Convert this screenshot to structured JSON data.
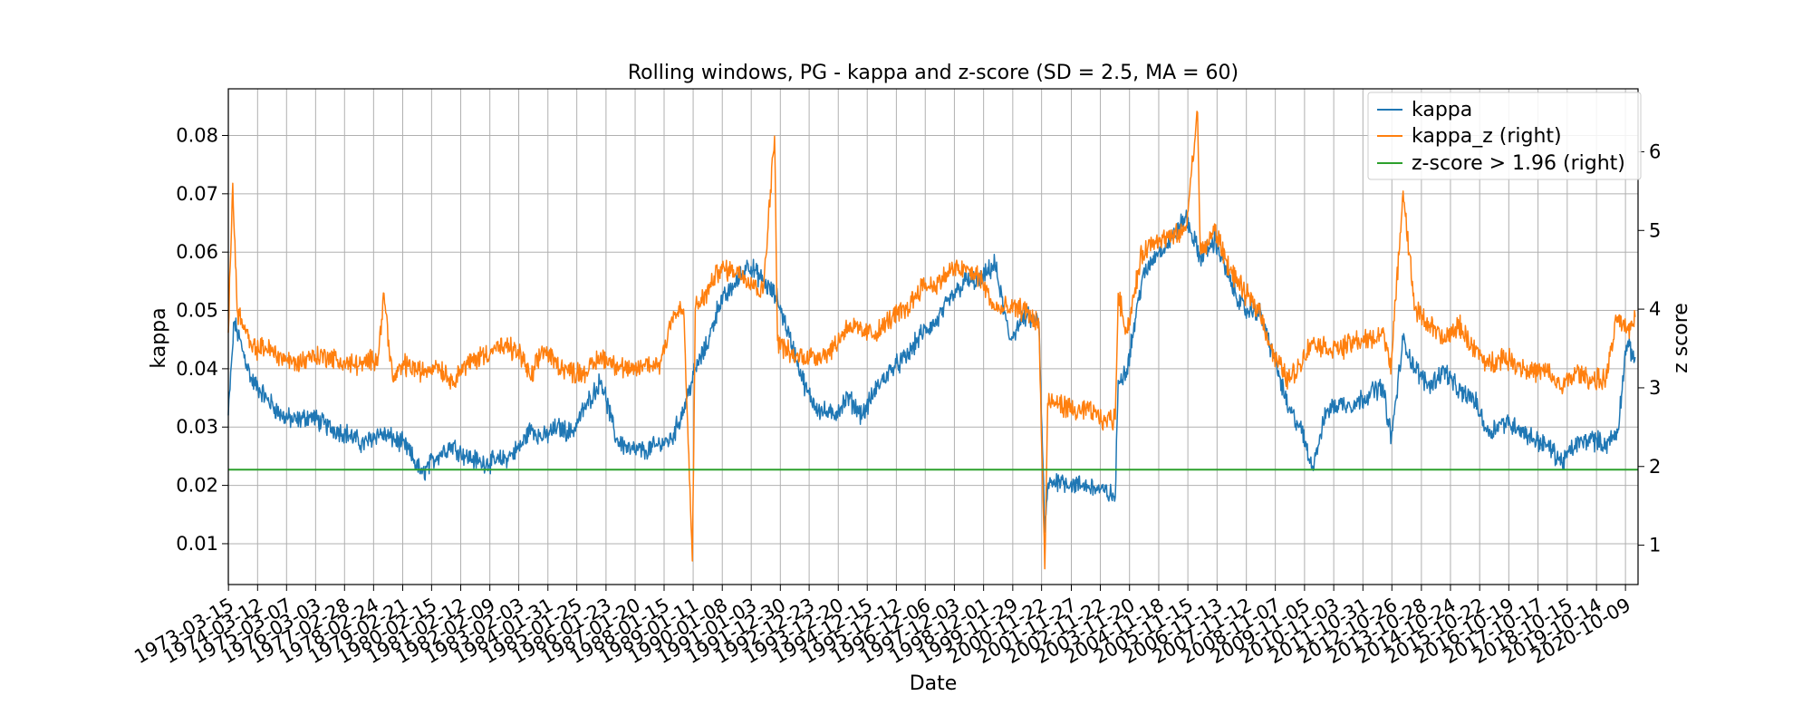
{
  "chart_data": {
    "type": "line",
    "title": "Rolling windows, PG - kappa and z-score (SD = 2.5, MA = 60)",
    "xlabel": "Date",
    "ylabel_left": "kappa",
    "ylabel_right": "z score",
    "ylim_left": [
      0.003,
      0.088
    ],
    "ylim_right": [
      0.5,
      6.8
    ],
    "yticks_left": [
      "0.01",
      "0.02",
      "0.03",
      "0.04",
      "0.05",
      "0.06",
      "0.07",
      "0.08"
    ],
    "yticks_right": [
      "1",
      "2",
      "3",
      "4",
      "5",
      "6"
    ],
    "xlim": [
      1973.2,
      2021.2
    ],
    "grid": true,
    "legend_position": "top-right",
    "x_tick_labels": [
      "1973-03-15",
      "1974-03-12",
      "1975-03-07",
      "1976-03-03",
      "1977-02-28",
      "1978-02-24",
      "1979-02-21",
      "1980-02-15",
      "1981-02-12",
      "1982-02-09",
      "1983-02-03",
      "1984-01-31",
      "1985-01-25",
      "1986-01-23",
      "1987-01-20",
      "1988-01-15",
      "1989-01-11",
      "1990-01-08",
      "1991-01-03",
      "1991-12-30",
      "1992-12-23",
      "1993-12-20",
      "1994-12-15",
      "1995-12-12",
      "1996-12-06",
      "1997-12-03",
      "1998-12-01",
      "1999-11-29",
      "2000-11-22",
      "2001-11-27",
      "2002-11-22",
      "2003-11-20",
      "2004-11-18",
      "2005-11-15",
      "2006-11-13",
      "2007-11-12",
      "2008-11-07",
      "2009-11-05",
      "2010-11-03",
      "2011-10-31",
      "2012-10-26",
      "2013-10-28",
      "2014-10-24",
      "2015-10-22",
      "2016-10-19",
      "2017-10-17",
      "2018-10-15",
      "2019-10-14",
      "2020-10-09"
    ],
    "colors": {
      "kappa": "#1f77b4",
      "kappa_z": "#ff7f0e",
      "threshold": "#2ca02c"
    },
    "series": [
      {
        "name": "kappa",
        "axis": "left",
        "x": [
          1973.2,
          1973.4,
          1973.7,
          1974.0,
          1974.5,
          1975.0,
          1975.5,
          1976.0,
          1976.6,
          1977.2,
          1977.8,
          1978.3,
          1978.8,
          1979.2,
          1979.8,
          1980.3,
          1980.8,
          1981.3,
          1981.8,
          1982.3,
          1982.8,
          1983.2,
          1983.5,
          1983.9,
          1984.4,
          1984.9,
          1985.4,
          1985.9,
          1986.4,
          1986.9,
          1987.4,
          1987.9,
          1988.3,
          1988.7,
          1989.1,
          1989.5,
          1989.9,
          1990.4,
          1990.9,
          1991.4,
          1991.9,
          1992.4,
          1992.9,
          1993.3,
          1993.8,
          1994.3,
          1994.8,
          1995.3,
          1995.8,
          1996.3,
          1996.8,
          1997.3,
          1997.8,
          1998.3,
          1998.8,
          1999.3,
          1999.8,
          2000.3,
          2000.8,
          2001.0,
          2001.1,
          2001.5,
          2002.0,
          2002.5,
          2003.0,
          2003.4,
          2003.5,
          2003.8,
          2004.3,
          2004.8,
          2005.3,
          2005.8,
          2006.3,
          2006.8,
          2007.3,
          2007.8,
          2008.3,
          2008.8,
          2009.3,
          2009.7,
          2010.1,
          2010.6,
          2011.1,
          2011.6,
          2012.1,
          2012.5,
          2012.8,
          2013.2,
          2013.6,
          2014.1,
          2014.6,
          2015.1,
          2015.6,
          2016.1,
          2016.6,
          2017.1,
          2017.6,
          2018.1,
          2018.6,
          2019.1,
          2019.6,
          2020.1,
          2020.5,
          2020.8,
          2021.1
        ],
        "y": [
          0.032,
          0.048,
          0.043,
          0.038,
          0.035,
          0.032,
          0.031,
          0.032,
          0.03,
          0.029,
          0.027,
          0.029,
          0.028,
          0.027,
          0.022,
          0.025,
          0.027,
          0.025,
          0.024,
          0.024,
          0.025,
          0.027,
          0.03,
          0.028,
          0.03,
          0.029,
          0.034,
          0.038,
          0.028,
          0.026,
          0.026,
          0.027,
          0.028,
          0.033,
          0.04,
          0.044,
          0.051,
          0.054,
          0.058,
          0.055,
          0.052,
          0.044,
          0.036,
          0.033,
          0.032,
          0.035,
          0.032,
          0.037,
          0.04,
          0.042,
          0.046,
          0.048,
          0.052,
          0.055,
          0.055,
          0.058,
          0.045,
          0.049,
          0.048,
          0.012,
          0.02,
          0.021,
          0.02,
          0.02,
          0.019,
          0.018,
          0.038,
          0.04,
          0.055,
          0.06,
          0.062,
          0.066,
          0.059,
          0.062,
          0.055,
          0.05,
          0.05,
          0.042,
          0.033,
          0.03,
          0.023,
          0.033,
          0.034,
          0.034,
          0.036,
          0.037,
          0.028,
          0.045,
          0.04,
          0.037,
          0.04,
          0.036,
          0.035,
          0.029,
          0.031,
          0.03,
          0.028,
          0.027,
          0.024,
          0.027,
          0.028,
          0.027,
          0.029,
          0.044,
          0.042
        ]
      },
      {
        "name": "kappa_z (right)",
        "axis": "right",
        "x": [
          1973.2,
          1973.35,
          1973.5,
          1973.7,
          1974.0,
          1974.5,
          1975.0,
          1975.5,
          1976.0,
          1976.6,
          1977.2,
          1977.8,
          1978.3,
          1978.5,
          1978.8,
          1979.2,
          1979.8,
          1980.3,
          1980.8,
          1981.3,
          1981.8,
          1982.3,
          1982.8,
          1983.2,
          1983.5,
          1983.9,
          1984.4,
          1984.9,
          1985.4,
          1985.9,
          1986.4,
          1986.9,
          1987.4,
          1987.9,
          1988.3,
          1988.7,
          1989.0,
          1989.1,
          1989.5,
          1989.9,
          1990.4,
          1990.9,
          1991.4,
          1991.8,
          1991.9,
          1992.4,
          1992.9,
          1993.3,
          1993.8,
          1994.3,
          1994.8,
          1995.3,
          1995.8,
          1996.3,
          1996.8,
          1997.3,
          1997.8,
          1998.3,
          1998.8,
          1999.3,
          1999.8,
          2000.3,
          2000.8,
          2001.0,
          2001.1,
          2001.5,
          2002.0,
          2002.5,
          2003.0,
          2003.4,
          2003.5,
          2003.8,
          2004.3,
          2004.8,
          2005.3,
          2005.8,
          2006.2,
          2006.3,
          2006.8,
          2007.3,
          2007.8,
          2008.3,
          2008.8,
          2009.3,
          2009.7,
          2010.1,
          2010.6,
          2011.1,
          2011.6,
          2012.1,
          2012.5,
          2012.8,
          2013.2,
          2013.6,
          2014.1,
          2014.6,
          2015.1,
          2015.6,
          2016.1,
          2016.6,
          2017.1,
          2017.6,
          2018.1,
          2018.6,
          2019.1,
          2019.6,
          2020.1,
          2020.5,
          2020.8,
          2021.1
        ],
        "y": [
          3.7,
          5.6,
          4.0,
          3.8,
          3.5,
          3.5,
          3.4,
          3.3,
          3.4,
          3.4,
          3.3,
          3.3,
          3.4,
          4.2,
          3.1,
          3.3,
          3.2,
          3.3,
          3.1,
          3.3,
          3.4,
          3.5,
          3.5,
          3.4,
          3.1,
          3.5,
          3.3,
          3.2,
          3.2,
          3.4,
          3.3,
          3.2,
          3.3,
          3.3,
          3.9,
          4.0,
          0.8,
          4.0,
          4.2,
          4.5,
          4.5,
          4.4,
          4.2,
          6.2,
          3.6,
          3.4,
          3.4,
          3.4,
          3.5,
          3.8,
          3.7,
          3.7,
          3.9,
          4.0,
          4.3,
          4.3,
          4.5,
          4.5,
          4.4,
          4.0,
          4.0,
          4.0,
          3.8,
          0.7,
          2.8,
          2.8,
          2.7,
          2.7,
          2.6,
          2.6,
          4.2,
          3.7,
          4.7,
          4.9,
          4.9,
          5.0,
          6.5,
          4.7,
          5.0,
          4.5,
          4.2,
          4.0,
          3.4,
          3.1,
          3.3,
          3.6,
          3.5,
          3.5,
          3.6,
          3.6,
          3.7,
          3.3,
          5.5,
          4.0,
          3.8,
          3.6,
          3.8,
          3.5,
          3.3,
          3.4,
          3.3,
          3.2,
          3.2,
          3.0,
          3.2,
          3.1,
          3.1,
          3.9,
          3.7,
          3.9
        ]
      },
      {
        "name": "z-score > 1.96 (right)",
        "axis": "right",
        "x": [
          1973.2,
          2021.2
        ],
        "y": [
          1.96,
          1.96
        ]
      }
    ]
  }
}
